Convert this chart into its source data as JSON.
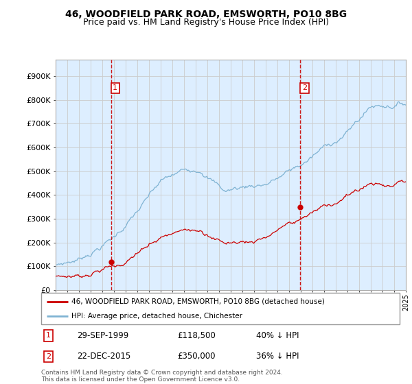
{
  "title": "46, WOODFIELD PARK ROAD, EMSWORTH, PO10 8BG",
  "subtitle": "Price paid vs. HM Land Registry's House Price Index (HPI)",
  "x_start_year": 1995,
  "x_end_year": 2025,
  "y_min": 0,
  "y_max": 950000,
  "y_ticks": [
    0,
    100000,
    200000,
    300000,
    400000,
    500000,
    600000,
    700000,
    800000,
    900000
  ],
  "y_tick_labels": [
    "£0",
    "£100K",
    "£200K",
    "£300K",
    "£400K",
    "£500K",
    "£600K",
    "£700K",
    "£800K",
    "£900K"
  ],
  "sale1_date": "29-SEP-1999",
  "sale1_price": 118500,
  "sale1_year": 1999.75,
  "sale1_label": "1",
  "sale2_date": "22-DEC-2015",
  "sale2_price": 350000,
  "sale2_year": 2015.97,
  "sale2_label": "2",
  "sale1_hpi_pct": "40% ↓ HPI",
  "sale2_hpi_pct": "36% ↓ HPI",
  "red_line_color": "#cc0000",
  "blue_line_color": "#7fb3d3",
  "vline_color": "#cc0000",
  "grid_color": "#cccccc",
  "bg_color": "#ddeeff",
  "legend_label_red": "46, WOODFIELD PARK ROAD, EMSWORTH, PO10 8BG (detached house)",
  "legend_label_blue": "HPI: Average price, detached house, Chichester",
  "footnote": "Contains HM Land Registry data © Crown copyright and database right 2024.\nThis data is licensed under the Open Government Licence v3.0."
}
